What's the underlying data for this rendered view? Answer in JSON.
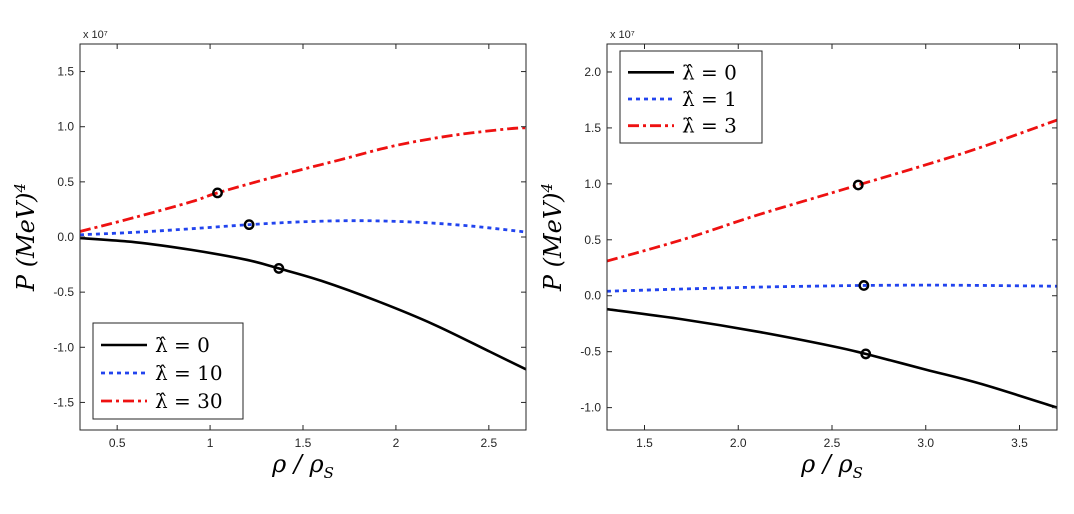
{
  "chart_data": [
    {
      "type": "line",
      "id": "left",
      "multiplier": "x 10⁷",
      "xlabel": "ρ / ρ",
      "xlabel_sub": "S",
      "ylabel": "P (MeV)",
      "ylabel_sup": "4",
      "xlim": [
        0.3,
        2.7
      ],
      "ylim": [
        -17500000,
        17500000
      ],
      "xticks": [
        0.5,
        1.0,
        1.5,
        2.0,
        2.5
      ],
      "xtick_labels": [
        "0.5",
        "1",
        "1.5",
        "2",
        "2.5"
      ],
      "yticks": [
        -15000000,
        -10000000,
        -5000000,
        0,
        5000000,
        10000000,
        15000000
      ],
      "ytick_labels": [
        "-1.5",
        "-1.0",
        "-0.5",
        "0.0",
        "0.5",
        "1.0",
        "1.5"
      ],
      "legend": "bottom-left",
      "series": [
        {
          "name": "λ̂ = 0",
          "color": "#000000",
          "style": "solid",
          "x": [
            0.3,
            0.6,
            0.9,
            1.2,
            1.37,
            1.6,
            1.9,
            2.2,
            2.5,
            2.7
          ],
          "y": [
            -100000,
            -480000,
            -1170000,
            -2080000,
            -2850000,
            -3980000,
            -5810000,
            -7900000,
            -10350000,
            -12000000
          ],
          "marker": {
            "x": 1.37,
            "y": -2850000
          }
        },
        {
          "name": "λ̂ = 10",
          "color": "#2244ee",
          "style": "dotted",
          "x": [
            0.3,
            0.6,
            0.9,
            1.21,
            1.5,
            1.8,
            2.1,
            2.4,
            2.7
          ],
          "y": [
            200000,
            430000,
            750000,
            1120000,
            1380000,
            1480000,
            1350000,
            1000000,
            450000
          ],
          "marker": {
            "x": 1.21,
            "y": 1120000
          }
        },
        {
          "name": "λ̂ = 30",
          "color": "#ee1111",
          "style": "dashdot",
          "x": [
            0.3,
            0.6,
            0.9,
            1.04,
            1.4,
            1.7,
            2.0,
            2.3,
            2.6,
            2.7
          ],
          "y": [
            500000,
            1800000,
            3200000,
            4000000,
            5700000,
            7000000,
            8300000,
            9200000,
            9800000,
            9900000
          ],
          "marker": {
            "x": 1.04,
            "y": 4000000
          }
        }
      ]
    },
    {
      "type": "line",
      "id": "right",
      "multiplier": "x 10⁷",
      "xlabel": "ρ / ρ",
      "xlabel_sub": "S",
      "ylabel": "P (MeV)",
      "ylabel_sup": "4",
      "xlim": [
        1.3,
        3.7
      ],
      "ylim": [
        -12000000,
        22500000
      ],
      "xticks": [
        1.5,
        2.0,
        2.5,
        3.0,
        3.5
      ],
      "xtick_labels": [
        "1.5",
        "2.0",
        "2.5",
        "3.0",
        "3.5"
      ],
      "yticks": [
        -10000000,
        -5000000,
        0,
        5000000,
        10000000,
        15000000,
        20000000
      ],
      "ytick_labels": [
        "-1.0",
        "-0.5",
        "0.0",
        "0.5",
        "1.0",
        "1.5",
        "2.0"
      ],
      "legend": "top-left",
      "series": [
        {
          "name": "λ̂ = 0",
          "color": "#000000",
          "style": "solid",
          "x": [
            1.3,
            1.7,
            2.1,
            2.5,
            2.68,
            3.0,
            3.3,
            3.7
          ],
          "y": [
            -1200000,
            -2100000,
            -3200000,
            -4500000,
            -5200000,
            -6600000,
            -7900000,
            -10000000
          ],
          "marker": {
            "x": 2.68,
            "y": -5200000
          }
        },
        {
          "name": "λ̂ = 1",
          "color": "#2244ee",
          "style": "dotted",
          "x": [
            1.3,
            1.7,
            2.1,
            2.5,
            2.67,
            3.0,
            3.3,
            3.7
          ],
          "y": [
            400000,
            600000,
            770000,
            880000,
            920000,
            950000,
            920000,
            850000
          ],
          "marker": {
            "x": 2.67,
            "y": 920000
          }
        },
        {
          "name": "λ̂ = 3",
          "color": "#ee1111",
          "style": "dashdot",
          "x": [
            1.3,
            1.7,
            2.1,
            2.5,
            2.64,
            3.0,
            3.3,
            3.7
          ],
          "y": [
            3100000,
            5000000,
            7200000,
            9200000,
            9900000,
            11700000,
            13300000,
            15700000
          ],
          "marker": {
            "x": 2.64,
            "y": 9900000
          }
        }
      ]
    }
  ]
}
